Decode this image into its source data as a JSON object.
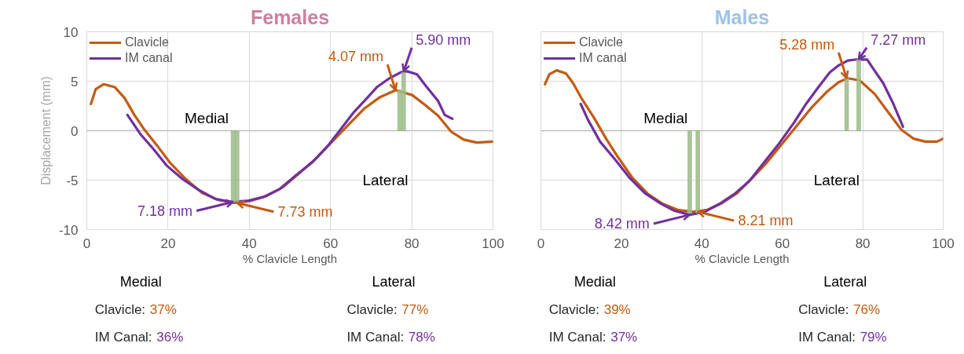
{
  "chart_data": [
    {
      "type": "line",
      "title": "Females",
      "xlabel": "% Clavicle Length",
      "ylabel": "Displacement (mm)",
      "xlim": [
        0,
        100
      ],
      "ylim": [
        -10,
        10
      ],
      "xticks": [
        0,
        20,
        40,
        60,
        80,
        100
      ],
      "yticks": [
        -10,
        -5,
        0,
        5,
        10
      ],
      "grid": true,
      "legend": "top left",
      "line_style": "solid",
      "series": [
        {
          "name": "Clavicle",
          "color": "#c55a11",
          "x": [
            1,
            2.2,
            4.1,
            6.9,
            9.3,
            11.7,
            14,
            17.3,
            20.4,
            24.4,
            28.4,
            32.4,
            36.4,
            40.3,
            44.3,
            48.3,
            52.3,
            56.2,
            60.2,
            64.2,
            68.2,
            72.2,
            76.1,
            80.1,
            83.3,
            86.5,
            89.7,
            92.8,
            96,
            100
          ],
          "values": [
            2.7,
            4.2,
            4.7,
            4.4,
            3.3,
            1.6,
            0.2,
            -1.5,
            -3.2,
            -4.9,
            -6.3,
            -7.0,
            -7.3,
            -7.1,
            -6.6,
            -5.7,
            -4.3,
            -2.9,
            -1.2,
            0.5,
            2.2,
            3.4,
            4.1,
            3.6,
            2.6,
            1.5,
            -0.1,
            -0.9,
            -1.2,
            -1.1
          ]
        },
        {
          "name": "IM canal",
          "color": "#7030a0",
          "x": [
            10,
            13.3,
            16.5,
            19.6,
            23.6,
            27.6,
            31.6,
            35.6,
            39.5,
            43.5,
            47.5,
            51.5,
            55.5,
            59.4,
            62.6,
            65.8,
            69,
            71.4,
            74.5,
            77.3,
            78.9,
            81.3,
            83.7,
            86.5,
            88.1,
            90
          ],
          "values": [
            1.6,
            -0.4,
            -1.9,
            -3.5,
            -4.9,
            -6.0,
            -6.9,
            -7.2,
            -7.1,
            -6.7,
            -5.9,
            -4.5,
            -3.2,
            -1.5,
            0.2,
            1.9,
            3.3,
            4.4,
            5.3,
            5.9,
            6.0,
            5.7,
            4.4,
            3.0,
            1.6,
            1.2
          ]
        },
        {
          "type": "bar",
          "color": "#9cbb88",
          "x": [
            36,
            37,
            77,
            78
          ],
          "values": [
            -7.2,
            -7.2,
            4.1,
            5.9
          ]
        }
      ],
      "annotations": [
        "Medial",
        "Lateral",
        {
          "text": "7.18 mm",
          "x": 36,
          "y": -7.2
        },
        {
          "text": "7.73 mm",
          "x": 37,
          "y": -7.3
        },
        {
          "text": "4.07 mm",
          "x": 76,
          "y": 4.1
        },
        {
          "text": "5.90 mm",
          "x": 78,
          "y": 6.0
        },
        "Medial",
        "Clavicle: 37%",
        "IM Canal: 36%",
        "Lateral",
        "Clavicle: 77%",
        "IM Canal: 78%"
      ]
    },
    {
      "type": "line",
      "title": "Males",
      "xlabel": "% Clavicle Length",
      "xlim": [
        0,
        100
      ],
      "ylim": [
        -10,
        10
      ],
      "xticks": [
        0,
        20,
        40,
        60,
        80,
        100
      ],
      "yticks": [
        -10,
        -5,
        0,
        5,
        10
      ],
      "grid": true,
      "legend": "top left",
      "line_style": "solid",
      "tick_labels": "x",
      "series": [
        {
          "name": "Clavicle",
          "color": "#c55a11",
          "x": [
            1,
            2.1,
            3.9,
            6.2,
            8,
            10.2,
            13.2,
            16.2,
            19.2,
            22.8,
            26.6,
            30.3,
            34,
            37.7,
            41.4,
            45.1,
            48.8,
            52.5,
            56.2,
            60,
            63.6,
            67.4,
            71,
            74,
            76.3,
            79.2,
            83,
            85.9,
            89.6,
            92.6,
            95.5,
            98.5,
            100
          ],
          "values": [
            4.7,
            5.7,
            6.1,
            5.8,
            4.8,
            3.2,
            1.3,
            -0.8,
            -2.7,
            -4.8,
            -6.4,
            -7.4,
            -8.0,
            -8.2,
            -8.0,
            -7.3,
            -6.3,
            -4.8,
            -3.2,
            -1.3,
            0.5,
            2.4,
            3.9,
            4.9,
            5.3,
            5.1,
            3.7,
            2.1,
            0.1,
            -0.8,
            -1.1,
            -1.1,
            -0.8
          ]
        },
        {
          "name": "IM canal",
          "color": "#7030a0",
          "x": [
            9.9,
            11.7,
            14.7,
            18.4,
            22.1,
            25.8,
            29.5,
            33.2,
            37,
            40.7,
            44.4,
            48.1,
            51.8,
            55.5,
            59.2,
            62.9,
            65.9,
            68.8,
            71.8,
            74,
            76.3,
            78.5,
            81.1,
            82.9,
            85.1,
            87.4,
            90
          ],
          "values": [
            2.7,
            1.1,
            -1.1,
            -2.9,
            -4.8,
            -6.3,
            -7.3,
            -8.1,
            -8.5,
            -8.2,
            -7.4,
            -6.4,
            -5.1,
            -3.2,
            -1.3,
            0.8,
            2.7,
            4.3,
            5.9,
            6.6,
            7.1,
            7.2,
            7.2,
            6.1,
            4.8,
            2.9,
            0.4
          ]
        },
        {
          "type": "bar",
          "color": "#9cbb88",
          "x": [
            37,
            39,
            76,
            79
          ],
          "values": [
            -8.3,
            -8.3,
            5.3,
            7.2
          ]
        }
      ],
      "annotations": [
        "Medial",
        "Lateral",
        {
          "text": "8.42 mm",
          "x": 37,
          "y": -8.5
        },
        {
          "text": "8.21 mm",
          "x": 39,
          "y": -8.2
        },
        {
          "text": "5.28 mm",
          "x": 76,
          "y": 5.3
        },
        {
          "text": "7.27 mm",
          "x": 79,
          "y": 7.2
        },
        "Medial",
        "Clavicle: 39%",
        "IM Canal: 37%",
        "Lateral",
        "Clavicle: 76%",
        "IM Canal: 79%"
      ]
    }
  ]
}
